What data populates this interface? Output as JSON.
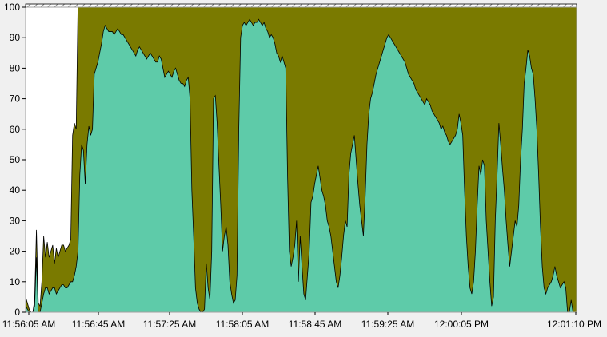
{
  "chart_data": {
    "type": "area",
    "title": "",
    "xlabel": "",
    "ylabel": "",
    "ylim": [
      0,
      100
    ],
    "grid": false,
    "legend": "none",
    "yticks": [
      0,
      10,
      20,
      30,
      40,
      50,
      60,
      70,
      80,
      90,
      100
    ],
    "xticks": [
      "11:56:05 AM",
      "11:56:45 AM",
      "11:57:25 AM",
      "11:58:05 AM",
      "11:58:45 AM",
      "11:59:25 AM",
      "12:00:05 PM",
      "12:01:10 PM"
    ],
    "colors": {
      "background": "#f0f0f0",
      "plot_background": "#ffffff",
      "lower_series": "#5ecba9",
      "upper_series": "#7a7a00",
      "outline": "#000000",
      "hatch": "#8a8a8a"
    },
    "x": [
      0,
      1,
      2,
      3,
      4,
      5,
      6,
      7,
      8,
      9,
      10,
      11,
      12,
      13,
      14,
      15,
      16,
      17,
      18,
      19,
      20,
      21,
      22,
      23,
      24,
      25,
      26,
      27,
      28,
      29,
      30,
      31,
      32,
      33,
      34,
      35,
      36,
      37,
      38,
      39,
      40,
      41,
      42,
      43,
      44,
      45,
      46,
      47,
      48,
      49,
      50,
      51,
      52,
      53,
      54,
      55,
      56,
      57,
      58,
      59,
      60,
      61,
      62,
      63,
      64,
      65,
      66,
      67,
      68,
      69,
      70,
      71,
      72,
      73,
      74,
      75,
      76,
      77,
      78,
      79,
      80,
      81,
      82,
      83,
      84,
      85,
      86,
      87,
      88,
      89,
      90,
      91,
      92,
      93,
      94,
      95,
      96,
      97,
      98,
      99,
      100,
      101,
      102,
      103,
      104,
      105,
      106,
      107,
      108,
      109,
      110,
      111,
      112,
      113,
      114,
      115,
      116,
      117,
      118,
      119,
      120,
      121,
      122,
      123,
      124,
      125,
      126,
      127,
      128,
      129,
      130,
      131,
      132,
      133,
      134,
      135,
      136,
      137,
      138,
      139,
      140,
      141,
      142,
      143,
      144,
      145,
      146,
      147,
      148,
      149,
      150,
      151,
      152,
      153,
      154,
      155,
      156,
      157,
      158,
      159,
      160,
      161,
      162,
      163,
      164,
      165,
      166,
      167,
      168,
      169,
      170,
      171,
      172,
      173,
      174,
      175,
      176,
      177,
      178,
      179,
      180,
      181,
      182,
      183,
      184,
      185,
      186,
      187,
      188,
      189,
      190,
      191,
      192,
      193,
      194,
      195,
      196,
      197,
      198,
      199,
      200,
      201,
      202,
      203,
      204,
      205,
      206,
      207,
      208,
      209,
      210,
      211,
      212,
      213,
      214,
      215,
      216,
      217,
      218,
      219,
      220,
      221,
      222,
      223,
      224,
      225,
      226,
      227,
      228,
      229,
      230,
      231,
      232,
      233,
      234,
      235,
      236,
      237,
      238,
      239,
      240,
      241,
      242,
      243,
      244,
      245,
      246,
      247,
      248,
      249,
      250,
      251,
      252,
      253,
      254,
      255,
      256,
      257,
      258,
      259,
      260,
      261,
      262,
      263,
      264,
      265,
      266,
      267,
      268,
      269,
      270,
      271,
      272,
      273,
      274,
      275,
      276,
      277,
      278,
      279,
      280,
      281,
      282,
      283,
      284,
      285,
      286,
      287,
      288,
      289,
      290,
      291,
      292,
      293,
      294,
      295,
      296,
      297,
      298,
      299,
      300,
      301,
      302,
      303,
      304,
      305
    ],
    "series": [
      {
        "values": [
          2,
          1,
          0,
          0,
          0,
          2,
          18,
          0,
          0,
          3,
          6,
          8,
          8,
          6,
          7,
          8,
          8,
          6,
          7,
          8,
          9,
          9,
          8,
          8,
          9,
          10,
          10,
          12,
          15,
          20,
          45,
          55,
          53,
          42,
          55,
          61,
          58,
          60,
          78,
          80,
          82,
          85,
          88,
          92,
          94,
          93,
          92,
          92,
          92,
          91,
          92,
          93,
          92,
          91,
          91,
          90,
          89,
          88,
          87,
          86,
          85,
          84,
          86,
          87,
          86,
          85,
          84,
          83,
          84,
          85,
          84,
          83,
          82,
          82,
          84,
          83,
          80,
          77,
          78,
          79,
          78,
          77,
          79,
          80,
          78,
          76,
          75,
          75,
          74,
          76,
          77,
          70,
          40,
          25,
          8,
          3,
          1,
          0,
          0,
          1,
          16,
          8,
          4,
          20,
          70,
          71,
          62,
          48,
          35,
          20,
          25,
          28,
          22,
          10,
          6,
          3,
          4,
          12,
          60,
          90,
          94,
          95,
          94,
          95,
          96,
          95,
          94,
          95,
          95,
          96,
          95,
          94,
          95,
          93,
          92,
          90,
          91,
          90,
          88,
          85,
          84,
          82,
          84,
          82,
          80,
          45,
          20,
          15,
          18,
          22,
          30,
          10,
          25,
          15,
          6,
          4,
          12,
          20,
          36,
          38,
          42,
          45,
          48,
          44,
          40,
          38,
          35,
          30,
          28,
          25,
          20,
          15,
          10,
          8,
          12,
          18,
          25,
          30,
          28,
          45,
          52,
          55,
          58,
          50,
          42,
          35,
          30,
          25,
          38,
          55,
          65,
          70,
          72,
          75,
          78,
          80,
          82,
          84,
          86,
          88,
          90,
          91,
          90,
          89,
          88,
          87,
          86,
          85,
          84,
          83,
          82,
          80,
          78,
          77,
          76,
          75,
          73,
          72,
          71,
          70,
          69,
          68,
          70,
          69,
          68,
          66,
          65,
          64,
          63,
          62,
          60,
          61,
          59,
          58,
          56,
          55,
          56,
          57,
          58,
          60,
          65,
          62,
          58,
          40,
          25,
          15,
          8,
          6,
          10,
          20,
          35,
          48,
          45,
          50,
          48,
          30,
          20,
          10,
          2,
          5,
          30,
          45,
          62,
          55,
          47,
          40,
          30,
          22,
          15,
          20,
          25,
          30,
          28,
          35,
          50,
          60,
          75,
          80,
          86,
          84,
          80,
          78,
          70,
          60,
          45,
          28,
          15,
          8,
          6,
          8,
          9,
          10,
          12,
          15,
          12,
          10,
          8,
          9,
          10,
          8,
          0,
          0,
          4,
          0,
          0,
          0
        ]
      },
      {
        "values": [
          5,
          3,
          1,
          0,
          0,
          4,
          27,
          3,
          2,
          10,
          25,
          18,
          23,
          18,
          20,
          22,
          16,
          21,
          18,
          20,
          22,
          22,
          20,
          21,
          22,
          24,
          58,
          62,
          60,
          100,
          100,
          100,
          100,
          100,
          100,
          100,
          100,
          100,
          100,
          100,
          100,
          100,
          100,
          100,
          100,
          100,
          100,
          100,
          100,
          100,
          100,
          100,
          100,
          100,
          100,
          100,
          100,
          100,
          100,
          100,
          100,
          100,
          100,
          100,
          100,
          100,
          100,
          100,
          100,
          100,
          100,
          100,
          100,
          100,
          100,
          100,
          100,
          100,
          100,
          100,
          100,
          100,
          100,
          100,
          100,
          100,
          100,
          100,
          100,
          100,
          100,
          100,
          100,
          100,
          100,
          100,
          100,
          100,
          100,
          100,
          100,
          100,
          100,
          100,
          100,
          100,
          100,
          100,
          100,
          100,
          100,
          100,
          100,
          100,
          100,
          100,
          100,
          100,
          100,
          100,
          100,
          100,
          100,
          100,
          100,
          100,
          100,
          100,
          100,
          100,
          100,
          100,
          100,
          100,
          100,
          100,
          100,
          100,
          100,
          100,
          100,
          100,
          100,
          100,
          100,
          100,
          100,
          100,
          100,
          100,
          100,
          100,
          100,
          100,
          100,
          100,
          100,
          100,
          100,
          100,
          100,
          100,
          100,
          100,
          100,
          100,
          100,
          100,
          100,
          100,
          100,
          100,
          100,
          100,
          100,
          100,
          100,
          100,
          100,
          100,
          100,
          100,
          100,
          100,
          100,
          100,
          100,
          100,
          100,
          100,
          100,
          100,
          100,
          100,
          100,
          100,
          100,
          100,
          100,
          100,
          100,
          100,
          100,
          100,
          100,
          100,
          100,
          100,
          100,
          100,
          100,
          100,
          100,
          100,
          100,
          100,
          100,
          100,
          100,
          100,
          100,
          100,
          100,
          100,
          100,
          100,
          100,
          100,
          100,
          100,
          100,
          100,
          100,
          100,
          100,
          100,
          100,
          100,
          100,
          100,
          100,
          100,
          100,
          100,
          100,
          100,
          100,
          100,
          100,
          100,
          100,
          100,
          100,
          100,
          100,
          100,
          100,
          100,
          100,
          100,
          100,
          100,
          100,
          100,
          100,
          100,
          100,
          100,
          100,
          100,
          100,
          100,
          100,
          100,
          100,
          100,
          100,
          100,
          100,
          100,
          100,
          100,
          100,
          100,
          100,
          100,
          100,
          100,
          100,
          100,
          100,
          100,
          100,
          100,
          100,
          100,
          100,
          100,
          100,
          100,
          100,
          100,
          100,
          100,
          100,
          100
        ]
      }
    ]
  }
}
